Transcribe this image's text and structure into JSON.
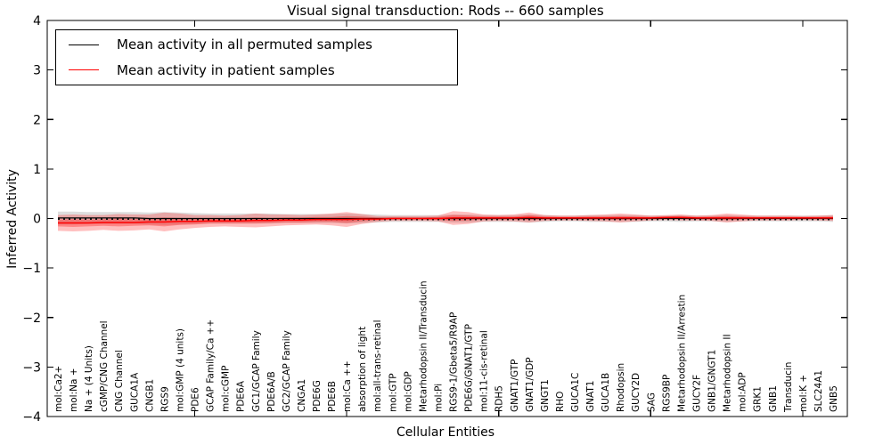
{
  "chart_data": {
    "type": "line",
    "title": "Visual signal transduction: Rods -- 660 samples",
    "xlabel": "Cellular Entities",
    "ylabel": "Inferred Activity",
    "ylim": [
      -4,
      4
    ],
    "yticks": [
      {
        "v": -4,
        "label": "−4"
      },
      {
        "v": -3,
        "label": "−3"
      },
      {
        "v": -2,
        "label": "−2"
      },
      {
        "v": -1,
        "label": "−1"
      },
      {
        "v": 0,
        "label": "0"
      },
      {
        "v": 1,
        "label": "1"
      },
      {
        "v": 2,
        "label": "2"
      },
      {
        "v": 3,
        "label": "3"
      },
      {
        "v": 4,
        "label": "4"
      }
    ],
    "xtick_positions_1based": [
      10,
      20,
      30,
      40,
      50
    ],
    "grid": false,
    "legend": {
      "position": "upper left",
      "entries": [
        {
          "label": "Mean activity in all permuted samples",
          "color": "#000000"
        },
        {
          "label": "Mean activity in patient samples",
          "color": "#ff0000"
        }
      ]
    },
    "categories": [
      "mol:Ca2+",
      "mol:Na +",
      "Na + (4 Units)",
      "cGMP/CNG Channel",
      "CNG Channel",
      "GUCA1A",
      "CNGB1",
      "RGS9",
      "mol:GMP (4 units)",
      "PDE6",
      "GCAP Family/Ca ++",
      "mol:cGMP",
      "PDE6A",
      "GC1/GCAP Family",
      "PDE6A/B",
      "GC2/GCAP Family",
      "CNGA1",
      "PDE6G",
      "PDE6B",
      "mol:Ca ++",
      "absorption of light",
      "mol:all-trans-retinal",
      "mol:GTP",
      "mol:GDP",
      "Metarhodopsin II/Transducin",
      "mol:Pi",
      "RGS9-1/Gbeta5/R9AP",
      "PDE6G/GNAT1/GTP",
      "mol:11-cis-retinal",
      "RDH5",
      "GNAT1/GTP",
      "GNAT1/GDP",
      "GNGT1",
      "RHO",
      "GUCA1C",
      "GNAT1",
      "GUCA1B",
      "Rhodopsin",
      "GUCY2D",
      "SAG",
      "RGS9BP",
      "Metarhodopsin II/Arrestin",
      "GUCY2F",
      "GNB1/GNGT1",
      "Metarhodopsin II",
      "mol:ADP",
      "GRK1",
      "GNB1",
      "Transducin",
      "mol:K +",
      "SLC24A1",
      "GNB5"
    ],
    "series": [
      {
        "name": "Mean activity in all permuted samples",
        "color": "#000000",
        "band_color": "rgba(0,0,0,0.13)",
        "mean": [
          0.01,
          0.01,
          0.01,
          0.01,
          0.01,
          0.01,
          0.0,
          0.0,
          0.0,
          0.0,
          0.0,
          0.0,
          0.0,
          0.0,
          0.0,
          0.0,
          0.0,
          0.0,
          0.0,
          0.0,
          0.0,
          0.0,
          0.0,
          0.0,
          0.0,
          0.0,
          0.0,
          0.0,
          0.0,
          0.0,
          0.0,
          0.0,
          0.0,
          0.0,
          0.0,
          0.0,
          0.0,
          0.0,
          0.0,
          0.0,
          0.0,
          0.0,
          0.0,
          0.0,
          0.0,
          0.0,
          0.0,
          0.0,
          0.0,
          0.0,
          0.0,
          0.0
        ],
        "band": [
          0.13,
          0.13,
          0.12,
          0.12,
          0.12,
          0.12,
          0.12,
          0.13,
          0.12,
          0.11,
          0.1,
          0.1,
          0.1,
          0.1,
          0.1,
          0.09,
          0.09,
          0.09,
          0.09,
          0.1,
          0.09,
          0.08,
          0.07,
          0.07,
          0.07,
          0.07,
          0.08,
          0.08,
          0.07,
          0.07,
          0.07,
          0.08,
          0.07,
          0.06,
          0.06,
          0.07,
          0.07,
          0.07,
          0.07,
          0.06,
          0.06,
          0.07,
          0.06,
          0.06,
          0.07,
          0.06,
          0.06,
          0.06,
          0.06,
          0.06,
          0.06,
          0.07
        ]
      },
      {
        "name": "Mean activity in patient samples",
        "color": "#ff0000",
        "band_color": "rgba(255,0,0,0.25)",
        "band_inner_color": "rgba(255,0,0,0.30)",
        "mean": [
          -0.09,
          -0.09,
          -0.09,
          -0.08,
          -0.08,
          -0.08,
          -0.07,
          -0.07,
          -0.06,
          -0.06,
          -0.05,
          -0.05,
          -0.05,
          -0.04,
          -0.04,
          -0.03,
          -0.03,
          -0.02,
          -0.02,
          -0.02,
          -0.01,
          -0.01,
          0.0,
          0.0,
          0.0,
          0.0,
          0.01,
          0.01,
          0.01,
          0.01,
          0.01,
          0.02,
          0.01,
          0.01,
          0.01,
          0.01,
          0.01,
          0.01,
          0.01,
          0.01,
          0.02,
          0.02,
          0.01,
          0.01,
          0.01,
          0.01,
          0.01,
          0.01,
          0.01,
          0.01,
          0.01,
          0.01
        ],
        "band": [
          0.16,
          0.17,
          0.16,
          0.15,
          0.17,
          0.16,
          0.15,
          0.19,
          0.16,
          0.13,
          0.12,
          0.11,
          0.12,
          0.14,
          0.12,
          0.11,
          0.1,
          0.1,
          0.12,
          0.15,
          0.1,
          0.06,
          0.05,
          0.05,
          0.05,
          0.06,
          0.14,
          0.12,
          0.07,
          0.06,
          0.07,
          0.1,
          0.06,
          0.05,
          0.05,
          0.06,
          0.07,
          0.09,
          0.07,
          0.05,
          0.05,
          0.06,
          0.05,
          0.06,
          0.09,
          0.07,
          0.05,
          0.05,
          0.05,
          0.04,
          0.05,
          0.06
        ],
        "band_inner": [
          0.07,
          0.08,
          0.07,
          0.07,
          0.08,
          0.07,
          0.07,
          0.09,
          0.07,
          0.06,
          0.05,
          0.05,
          0.05,
          0.06,
          0.05,
          0.05,
          0.05,
          0.05,
          0.05,
          0.07,
          0.05,
          0.03,
          0.02,
          0.02,
          0.02,
          0.03,
          0.06,
          0.05,
          0.03,
          0.03,
          0.03,
          0.05,
          0.03,
          0.02,
          0.02,
          0.03,
          0.03,
          0.04,
          0.03,
          0.02,
          0.02,
          0.03,
          0.02,
          0.03,
          0.04,
          0.03,
          0.02,
          0.02,
          0.02,
          0.02,
          0.02,
          0.03
        ]
      }
    ]
  }
}
